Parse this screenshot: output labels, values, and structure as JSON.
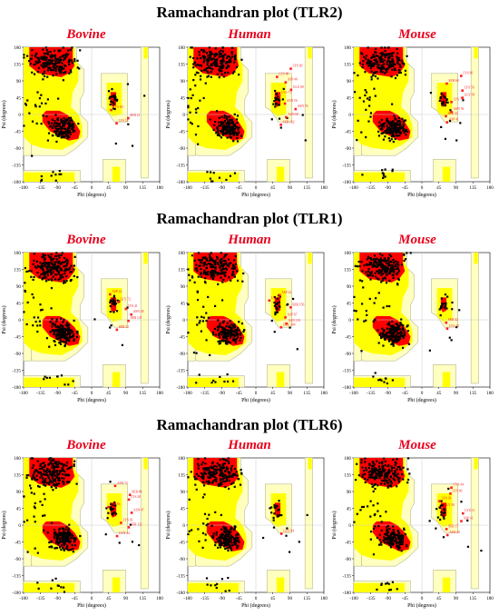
{
  "axis": {
    "xlabel": "Phi (degrees)",
    "ylabel": "Psi (degrees)",
    "xlim": [
      -180,
      180
    ],
    "ylim": [
      -180,
      180
    ],
    "ticks": [
      -180,
      -135,
      -90,
      -45,
      0,
      45,
      90,
      135,
      180
    ],
    "tick_labels": [
      "-180",
      "-135",
      "-90",
      "-45",
      "0",
      "45",
      "90",
      "135",
      "180"
    ]
  },
  "colors": {
    "core": "#ff0000",
    "allowed": "#ffff00",
    "generous": "#ffffc0",
    "generous_border": "#b8b890",
    "residue": "#000000",
    "outlier_label": "#ff2020",
    "species_title": "#e8001c"
  },
  "chart_data": [
    {
      "type": "scatter",
      "title": "Ramachandran plot (TLR2)",
      "panels": [
        {
          "species": "Bovine",
          "outlier_labels": [
            "LYS 18",
            "SER 21",
            "LYS 80"
          ]
        },
        {
          "species": "Human",
          "outlier_labels": [
            "SER 162",
            "ASN 68",
            "ASN 76",
            "ASN 56",
            "LYS 71",
            "GLU 89",
            "ASP 40",
            "LYS 80",
            "LYS 60"
          ]
        },
        {
          "species": "Mouse",
          "outlier_labels": [
            "ASP 41",
            "SER 42",
            "ASN 56",
            "LYS 71",
            "GLY 58",
            "LYS 56",
            "SER 68",
            "LYS 60"
          ]
        }
      ]
    },
    {
      "type": "scatter",
      "title": "Ramachandran plot (TLR1)",
      "panels": [
        {
          "species": "Bovine",
          "outlier_labels": [
            "SER 32",
            "SER 147",
            "ASN 28",
            "LYS 41",
            "GLY 72",
            "ASP 24"
          ]
        },
        {
          "species": "Human",
          "outlier_labels": [
            "GLU 204",
            "ASN 119",
            "ASP 67",
            "SER 156",
            "LYS 76",
            "ASP 24"
          ]
        },
        {
          "species": "Mouse",
          "outlier_labels": [
            "LYS 19",
            "SER 42"
          ]
        }
      ]
    },
    {
      "type": "scatter",
      "title": "Ramachandran plot (TLR6)",
      "panels": [
        {
          "species": "Bovine",
          "outlier_labels": [
            "GLN 44",
            "SER 121",
            "LYS 93",
            "ASN 47",
            "SER 56",
            "LYS 28",
            "SER 84",
            "ASN 72"
          ]
        },
        {
          "species": "Human",
          "outlier_labels": [
            "GLU 84"
          ]
        },
        {
          "species": "Mouse",
          "outlier_labels": [
            "ASN 40",
            "SER 17",
            "ASP 41",
            "LYS 51",
            "GLY 58",
            "LYS 93",
            "LYS 80",
            "CYS 44"
          ]
        }
      ]
    }
  ]
}
